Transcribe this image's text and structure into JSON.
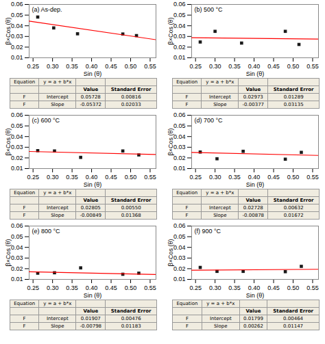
{
  "chart_data": [
    {
      "type": "scatter",
      "annotation": "(a) As-dep.",
      "xlabel": "Sin (θ)",
      "ylabel": "β×Cos (θ)",
      "xlim": [
        0.24,
        0.565
      ],
      "ylim": [
        0.01,
        0.06
      ],
      "xticks": [
        0.25,
        {
          "value": 0.3,
          "label": "0.30"
        },
        0.35,
        {
          "value": 0.4,
          "label": "0.40"
        },
        0.45,
        {
          "value": 0.5,
          "label": "0.50"
        },
        0.55
      ],
      "yticks": [
        0.01,
        0.02,
        0.03,
        0.04,
        0.05,
        0.06
      ],
      "series": [
        {
          "type": "scatter",
          "marker": "square",
          "color": "#1a1a1a",
          "x": [
            0.262,
            0.303,
            0.364,
            0.48,
            0.515
          ],
          "values": [
            0.0482,
            0.038,
            0.0325,
            0.0323,
            0.0308
          ]
        },
        {
          "type": "line",
          "color": "#ff0000",
          "x": [
            0.24,
            0.565
          ],
          "values": [
            0.0443872,
            0.0269282
          ]
        }
      ],
      "table": {
        "background": "#f0ece0",
        "border_color": "#999999",
        "equation": [
          "Equation",
          "y = a + b*x"
        ],
        "columns": [
          "Value",
          "Standard Error"
        ],
        "rows": [
          {
            "cells": [
              "F",
              "Intercept"
            ],
            "values": [
              0.05728,
              0.00816
            ],
            "value_labels": [
              "0.05728",
              "0.00816"
            ]
          },
          {
            "cells": [
              "F",
              "Slope"
            ],
            "values": [
              -0.05372,
              0.02033
            ],
            "value_labels": [
              "-0.05372",
              "0.02033"
            ]
          }
        ]
      }
    },
    {
      "type": "scatter",
      "annotation": "(b) 500 °C",
      "xlabel": "Sin (θ)",
      "ylabel": "β×Cos (θ)",
      "xlim": [
        0.24,
        0.565
      ],
      "ylim": [
        0.01,
        0.06
      ],
      "xticks": [
        0.25,
        {
          "value": 0.3,
          "label": "0.30"
        },
        0.35,
        {
          "value": 0.4,
          "label": "0.40"
        },
        0.45,
        {
          "value": 0.5,
          "label": "0.50"
        },
        0.55
      ],
      "yticks": [
        0.01,
        0.02,
        0.03,
        0.04,
        0.05,
        0.06
      ],
      "series": [
        {
          "type": "scatter",
          "marker": "square",
          "color": "#1a1a1a",
          "x": [
            0.262,
            0.3,
            0.368,
            0.48,
            0.515
          ],
          "values": [
            0.0248,
            0.0348,
            0.0238,
            0.0348,
            0.0225
          ]
        },
        {
          "type": "line",
          "color": "#ff0000",
          "x": [
            0.24,
            0.565
          ],
          "values": [
            0.0288252,
            0.02759995
          ]
        }
      ],
      "table": {
        "background": "#f0ece0",
        "border_color": "#999999",
        "equation": [
          "Equation",
          "y = a + b*x"
        ],
        "columns": [
          "Value",
          "Standard Error"
        ],
        "rows": [
          {
            "cells": [
              "F",
              "Intercept"
            ],
            "values": [
              0.02973,
              0.01289
            ],
            "value_labels": [
              "0.02973",
              "0.01289"
            ]
          },
          {
            "cells": [
              "F",
              "Slope"
            ],
            "values": [
              -0.00377,
              0.03135
            ],
            "value_labels": [
              "-0.00377",
              "0.03135"
            ]
          }
        ]
      }
    },
    {
      "type": "scatter",
      "annotation": "(c) 600 °C",
      "xlabel": "Sin (θ)",
      "ylabel": "β×Cos (θ)",
      "xlim": [
        0.24,
        0.565
      ],
      "ylim": [
        0.01,
        0.06
      ],
      "xticks": [
        0.25,
        {
          "value": 0.3,
          "label": "0.30"
        },
        0.35,
        {
          "value": 0.4,
          "label": "0.40"
        },
        0.45,
        {
          "value": 0.5,
          "label": "0.50"
        },
        0.55
      ],
      "yticks": [
        0.01,
        0.02,
        0.03,
        0.04,
        0.05,
        0.06
      ],
      "series": [
        {
          "type": "scatter",
          "marker": "square",
          "color": "#1a1a1a",
          "x": [
            0.262,
            0.305,
            0.372,
            0.48,
            0.521
          ],
          "values": [
            0.0268,
            0.0265,
            0.0205,
            0.0265,
            0.0228
          ]
        },
        {
          "type": "line",
          "color": "#ff0000",
          "x": [
            0.24,
            0.565
          ],
          "values": [
            0.0260124,
            0.02325315
          ]
        }
      ],
      "table": {
        "background": "#f0ece0",
        "border_color": "#999999",
        "equation": [
          "Equation",
          "y = a + b*x"
        ],
        "columns": [
          "Value",
          "Standard Error"
        ],
        "rows": [
          {
            "cells": [
              "F",
              "Intercept"
            ],
            "values": [
              0.02805,
              0.0055
            ],
            "value_labels": [
              "0.02805",
              "0.00550"
            ]
          },
          {
            "cells": [
              "F",
              "Slope"
            ],
            "values": [
              -0.00849,
              0.01368
            ],
            "value_labels": [
              "-0.00849",
              "0.01368"
            ]
          }
        ]
      }
    },
    {
      "type": "scatter",
      "annotation": "(d) 700 °C",
      "xlabel": "Sin (θ)",
      "ylabel": "β×Cos (θ)",
      "xlim": [
        0.24,
        0.565
      ],
      "ylim": [
        0.01,
        0.06
      ],
      "xticks": [
        0.25,
        {
          "value": 0.3,
          "label": "0.30"
        },
        0.35,
        {
          "value": 0.4,
          "label": "0.40"
        },
        0.45,
        {
          "value": 0.5,
          "label": "0.50"
        },
        0.55
      ],
      "yticks": [
        0.01,
        0.02,
        0.03,
        0.04,
        0.05,
        0.06
      ],
      "series": [
        {
          "type": "scatter",
          "marker": "square",
          "color": "#1a1a1a",
          "x": [
            0.262,
            0.305,
            0.372,
            0.48,
            0.521
          ],
          "values": [
            0.0255,
            0.0192,
            0.0262,
            0.0188,
            0.0252
          ]
        },
        {
          "type": "line",
          "color": "#ff0000",
          "x": [
            0.24,
            0.565
          ],
          "values": [
            0.0251728,
            0.0223193
          ]
        }
      ],
      "table": {
        "background": "#f0ece0",
        "border_color": "#999999",
        "equation": [
          "Equation",
          "y = a + b*x"
        ],
        "columns": [
          "Value",
          "Standard Error"
        ],
        "rows": [
          {
            "cells": [
              "F",
              "Intercept"
            ],
            "values": [
              0.02728,
              0.00632
            ],
            "value_labels": [
              "0.02728",
              "0.00632"
            ]
          },
          {
            "cells": [
              "F",
              "Slope"
            ],
            "values": [
              -0.00878,
              0.01672
            ],
            "value_labels": [
              "-0.00878",
              "0.01672"
            ]
          }
        ]
      }
    },
    {
      "type": "scatter",
      "annotation": "(e) 800 °C",
      "xlabel": "Sin (θ)",
      "ylabel": "β×Cos (θ)",
      "xlim": [
        0.24,
        0.565
      ],
      "ylim": [
        0.01,
        0.06
      ],
      "xticks": [
        0.25,
        {
          "value": 0.3,
          "label": "0.30"
        },
        0.35,
        {
          "value": 0.4,
          "label": "0.40"
        },
        0.45,
        {
          "value": 0.5,
          "label": "0.50"
        },
        0.55
      ],
      "yticks": [
        0.01,
        0.02,
        0.03,
        0.04,
        0.05,
        0.06
      ],
      "series": [
        {
          "type": "scatter",
          "marker": "square",
          "color": "#1a1a1a",
          "x": [
            0.262,
            0.305,
            0.372,
            0.48,
            0.521
          ],
          "values": [
            0.0158,
            0.0162,
            0.0208,
            0.0148,
            0.0158
          ]
        },
        {
          "type": "line",
          "color": "#ff0000",
          "x": [
            0.24,
            0.565
          ],
          "values": [
            0.0171548,
            0.0145613
          ]
        }
      ],
      "table": {
        "background": "#f0ece0",
        "border_color": "#999999",
        "equation": [
          "Equation",
          "y = a + b*x"
        ],
        "columns": [
          "Value",
          "Standard Error"
        ],
        "rows": [
          {
            "cells": [
              "F",
              "Intercept"
            ],
            "values": [
              0.01907,
              0.00476
            ],
            "value_labels": [
              "0.01907",
              "0.00476"
            ]
          },
          {
            "cells": [
              "F",
              "Slope"
            ],
            "values": [
              -0.00798,
              0.01183
            ],
            "value_labels": [
              "-0.00798",
              "0.01183"
            ]
          }
        ]
      }
    },
    {
      "type": "scatter",
      "annotation": "(f) 900 °C",
      "xlabel": "Sin (θ)",
      "ylabel": "β×Cos (θ)",
      "xlim": [
        0.24,
        0.565
      ],
      "ylim": [
        0.01,
        0.06
      ],
      "xticks": [
        0.25,
        {
          "value": 0.3,
          "label": "0.30"
        },
        0.35,
        {
          "value": 0.4,
          "label": "0.40"
        },
        0.45,
        {
          "value": 0.5,
          "label": "0.50"
        },
        0.55
      ],
      "yticks": [
        0.01,
        0.02,
        0.03,
        0.04,
        0.05,
        0.06
      ],
      "series": [
        {
          "type": "scatter",
          "marker": "square",
          "color": "#1a1a1a",
          "x": [
            0.262,
            0.305,
            0.372,
            0.48,
            0.521
          ],
          "values": [
            0.0212,
            0.0175,
            0.0175,
            0.0172,
            0.0222
          ]
        },
        {
          "type": "line",
          "color": "#ff0000",
          "x": [
            0.24,
            0.565
          ],
          "values": [
            0.0186188,
            0.0194703
          ]
        }
      ],
      "table": {
        "background": "#f0ece0",
        "border_color": "#999999",
        "equation": [
          "Equation",
          "y = a + b*x"
        ],
        "columns": [
          "Value",
          "Standard Error"
        ],
        "rows": [
          {
            "cells": [
              "F",
              "Intercept"
            ],
            "values": [
              0.01799,
              0.00464
            ],
            "value_labels": [
              "0.01799",
              "0.00464"
            ]
          },
          {
            "cells": [
              "F",
              "Slope"
            ],
            "values": [
              0.00262,
              0.01147
            ],
            "value_labels": [
              "0.00262",
              "0.01147"
            ]
          }
        ]
      }
    }
  ]
}
